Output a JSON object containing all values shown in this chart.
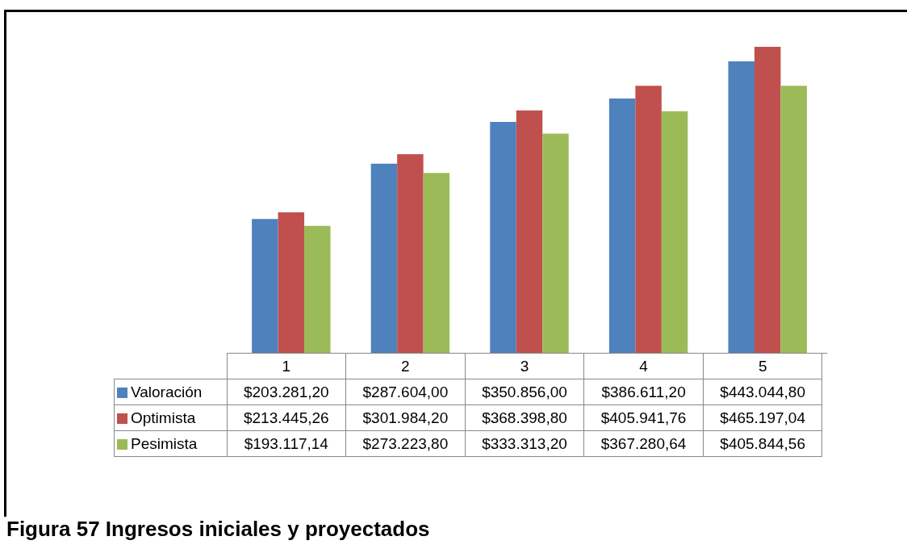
{
  "chart_data": {
    "type": "bar",
    "title": "Figura 57 Ingresos iniciales y proyectados",
    "categories": [
      "1",
      "2",
      "3",
      "4",
      "5"
    ],
    "series": [
      {
        "name": "Valoración",
        "color": "#4f81bd",
        "values": [
          203281.2,
          287604.0,
          350856.0,
          386611.2,
          443044.8
        ],
        "value_labels": [
          "$203.281,20",
          "$287.604,00",
          "$350.856,00",
          "$386.611,20",
          "$443.044,80"
        ]
      },
      {
        "name": "Optimista",
        "color": "#c0504d",
        "values": [
          213445.26,
          301984.2,
          368398.8,
          405941.76,
          465197.04
        ],
        "value_labels": [
          "$213.445,26",
          "$301.984,20",
          "$368.398,80",
          "$405.941,76",
          "$465.197,04"
        ]
      },
      {
        "name": "Pesimista",
        "color": "#9bbb59",
        "values": [
          193117.14,
          273223.8,
          333313.2,
          367280.64,
          405844.56
        ],
        "value_labels": [
          "$193.117,14",
          "$273.223,80",
          "$333.313,20",
          "$367.280,64",
          "$405.844,56"
        ]
      }
    ],
    "legend": "bottom left",
    "grid": false
  }
}
